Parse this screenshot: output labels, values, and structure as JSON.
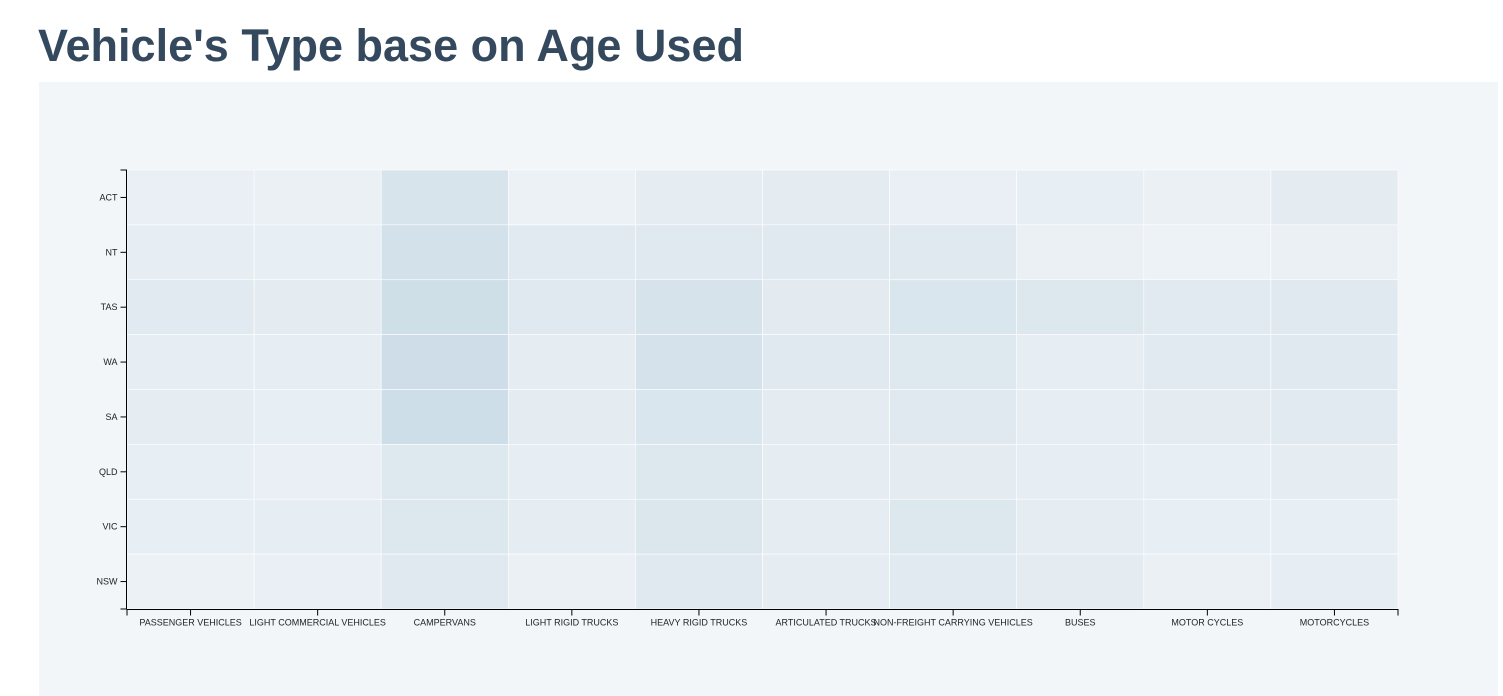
{
  "page": {
    "title": "Vehicle's Type base on Age Used"
  },
  "chart_data": {
    "type": "heatmap",
    "title": "Vehicle's Type base on Age Used",
    "xlabel": "",
    "ylabel": "",
    "x_categories": [
      "PASSENGER VEHICLES",
      "LIGHT COMMERCIAL VEHICLES",
      "CAMPERVANS",
      "LIGHT RIGID TRUCKS",
      "HEAVY RIGID TRUCKS",
      "ARTICULATED TRUCKS",
      "NON-FREIGHT CARRYING VEHICLES",
      "BUSES",
      "MOTOR CYCLES",
      "MOTORCYCLES"
    ],
    "y_categories": [
      "ACT",
      "NT",
      "TAS",
      "WA",
      "SA",
      "QLD",
      "VIC",
      "NSW"
    ],
    "values": [
      [
        0.18,
        0.16,
        0.55,
        0.12,
        0.28,
        0.3,
        0.18,
        0.2,
        0.16,
        0.3
      ],
      [
        0.22,
        0.2,
        0.65,
        0.34,
        0.38,
        0.4,
        0.4,
        0.16,
        0.1,
        0.16
      ],
      [
        0.36,
        0.3,
        0.72,
        0.38,
        0.58,
        0.32,
        0.5,
        0.45,
        0.36,
        0.4
      ],
      [
        0.24,
        0.22,
        0.76,
        0.28,
        0.6,
        0.38,
        0.42,
        0.22,
        0.34,
        0.38
      ],
      [
        0.28,
        0.2,
        0.74,
        0.3,
        0.5,
        0.3,
        0.38,
        0.22,
        0.3,
        0.36
      ],
      [
        0.2,
        0.18,
        0.42,
        0.24,
        0.44,
        0.26,
        0.3,
        0.22,
        0.2,
        0.26
      ],
      [
        0.2,
        0.22,
        0.44,
        0.26,
        0.48,
        0.28,
        0.46,
        0.28,
        0.2,
        0.2
      ],
      [
        0.14,
        0.18,
        0.4,
        0.16,
        0.4,
        0.26,
        0.34,
        0.3,
        0.16,
        0.22
      ]
    ],
    "color_low": "#f2f5f8",
    "color_high": "#c2d6e2",
    "grid": false,
    "legend": "none"
  },
  "colors": {
    "title": "#34495e",
    "panel_background": "#f2f6f9",
    "axis": "#000000",
    "cell_border": "#ffffff"
  }
}
